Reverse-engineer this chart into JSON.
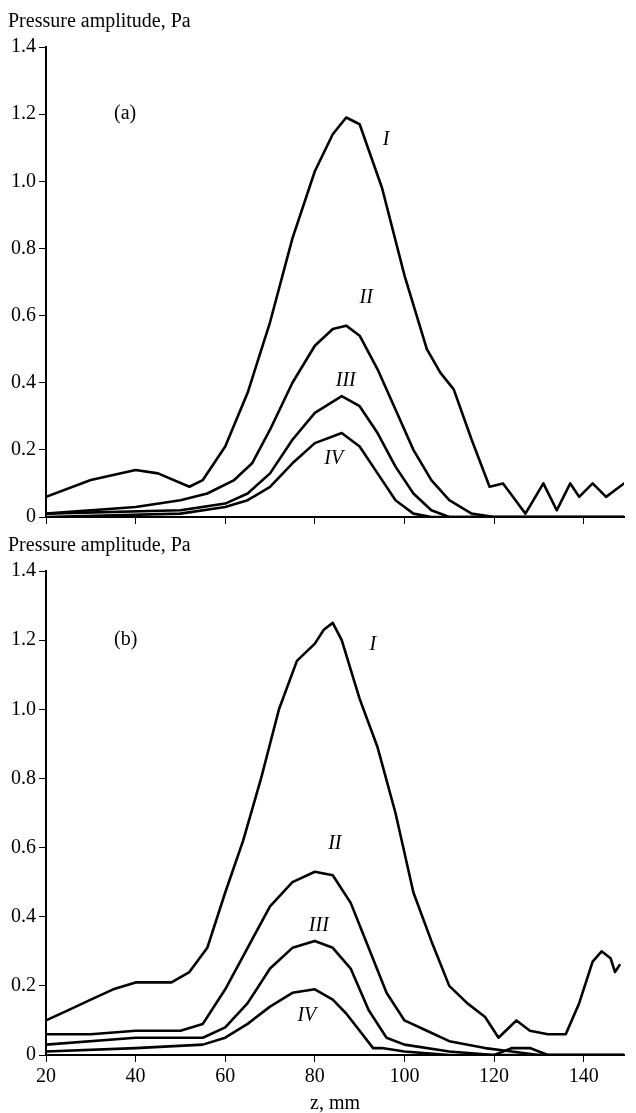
{
  "chart_data": [
    {
      "type": "line",
      "ylabel": "Pressure amplitude, Pa",
      "xlim": [
        20,
        149
      ],
      "ylim": [
        0,
        1.4
      ],
      "xticks": [
        20,
        40,
        60,
        80,
        100,
        120,
        140
      ],
      "yticks": [
        0,
        0.2,
        0.4,
        0.6,
        0.8,
        {
          "value": 1,
          "label": "1.0"
        },
        1.2,
        1.4
      ],
      "tick_labels": "y",
      "grid": false,
      "marker": "none",
      "series": [
        {
          "name": "I",
          "color": "#000000",
          "x": [
            20,
            30,
            40,
            45,
            52,
            55,
            60,
            65,
            70,
            75,
            80,
            84,
            87,
            90,
            95,
            100,
            105,
            108,
            111,
            115,
            119,
            122,
            127,
            131,
            134,
            137,
            139,
            142,
            145,
            149
          ],
          "values": [
            0.06,
            0.11,
            0.14,
            0.13,
            0.09,
            0.11,
            0.21,
            0.37,
            0.58,
            0.83,
            1.03,
            1.14,
            1.19,
            1.17,
            0.98,
            0.72,
            0.5,
            0.43,
            0.38,
            0.23,
            0.09,
            0.1,
            0.01,
            0.1,
            0.02,
            0.1,
            0.06,
            0.1,
            0.06,
            0.1
          ]
        },
        {
          "name": "II",
          "color": "#000000",
          "x": [
            20,
            40,
            50,
            56,
            62,
            66,
            70,
            75,
            80,
            84,
            87,
            90,
            94,
            98,
            102,
            106,
            110,
            115,
            120,
            149
          ],
          "values": [
            0.01,
            0.03,
            0.05,
            0.07,
            0.11,
            0.16,
            0.26,
            0.4,
            0.51,
            0.56,
            0.57,
            0.54,
            0.44,
            0.32,
            0.2,
            0.11,
            0.05,
            0.01,
            0,
            0
          ]
        },
        {
          "name": "III",
          "color": "#000000",
          "x": [
            20,
            50,
            60,
            65,
            70,
            75,
            80,
            86,
            90,
            94,
            98,
            102,
            106,
            110,
            149
          ],
          "values": [
            0.01,
            0.02,
            0.04,
            0.07,
            0.13,
            0.23,
            0.31,
            0.36,
            0.33,
            0.25,
            0.15,
            0.07,
            0.02,
            0,
            0
          ]
        },
        {
          "name": "IV",
          "color": "#000000",
          "x": [
            20,
            50,
            60,
            65,
            70,
            75,
            80,
            86,
            90,
            94,
            98,
            102,
            106,
            149
          ],
          "values": [
            0,
            0.01,
            0.03,
            0.05,
            0.09,
            0.16,
            0.22,
            0.25,
            0.21,
            0.13,
            0.05,
            0.01,
            0,
            0
          ]
        }
      ],
      "annotations": [
        "(a)"
      ]
    },
    {
      "type": "line",
      "ylabel": "Pressure amplitude, Pa",
      "xlabel": "z, mm",
      "xlim": [
        20,
        149
      ],
      "ylim": [
        0,
        1.4
      ],
      "xticks": [
        20,
        40,
        60,
        80,
        100,
        120,
        140
      ],
      "yticks": [
        0,
        0.2,
        0.4,
        0.6,
        0.8,
        {
          "value": 1,
          "label": "1.0"
        },
        1.2,
        1.4
      ],
      "grid": false,
      "marker": "none",
      "series": [
        {
          "name": "I",
          "color": "#000000",
          "x": [
            20,
            25,
            30,
            35,
            40,
            45,
            48,
            52,
            56,
            60,
            64,
            68,
            72,
            76,
            80,
            82,
            84,
            86,
            90,
            94,
            98,
            102,
            106,
            110,
            114,
            118,
            121,
            125,
            128,
            132,
            136,
            139,
            142,
            144,
            146,
            147,
            148
          ],
          "values": [
            0.1,
            0.13,
            0.16,
            0.19,
            0.21,
            0.21,
            0.21,
            0.24,
            0.31,
            0.47,
            0.62,
            0.8,
            1,
            1.14,
            1.19,
            1.23,
            1.25,
            1.2,
            1.03,
            0.89,
            0.7,
            0.47,
            0.33,
            0.2,
            0.15,
            0.11,
            0.05,
            0.1,
            0.07,
            0.06,
            0.06,
            0.15,
            0.27,
            0.3,
            0.28,
            0.24,
            0.26
          ]
        },
        {
          "name": "II",
          "color": "#000000",
          "x": [
            20,
            30,
            40,
            50,
            55,
            60,
            65,
            70,
            75,
            80,
            84,
            88,
            92,
            96,
            100,
            105,
            110,
            118,
            124,
            130,
            149
          ],
          "values": [
            0.06,
            0.06,
            0.07,
            0.07,
            0.09,
            0.19,
            0.31,
            0.43,
            0.5,
            0.53,
            0.52,
            0.44,
            0.31,
            0.18,
            0.1,
            0.07,
            0.04,
            0.02,
            0.01,
            0,
            0
          ]
        },
        {
          "name": "III",
          "color": "#000000",
          "x": [
            20,
            40,
            50,
            55,
            60,
            65,
            70,
            75,
            80,
            84,
            88,
            92,
            96,
            100,
            110,
            120,
            124,
            128,
            132,
            149
          ],
          "values": [
            0.03,
            0.05,
            0.05,
            0.05,
            0.08,
            0.15,
            0.25,
            0.31,
            0.33,
            0.31,
            0.25,
            0.13,
            0.05,
            0.03,
            0.01,
            0,
            0.02,
            0.02,
            0,
            0
          ]
        },
        {
          "name": "IV",
          "color": "#000000",
          "x": [
            20,
            40,
            55,
            60,
            65,
            70,
            75,
            80,
            84,
            87,
            90,
            93,
            95,
            100,
            110,
            149
          ],
          "values": [
            0.01,
            0.02,
            0.03,
            0.05,
            0.09,
            0.14,
            0.18,
            0.19,
            0.16,
            0.12,
            0.07,
            0.02,
            0.02,
            0.01,
            0,
            0
          ]
        }
      ],
      "annotations": [
        "(b)"
      ]
    }
  ]
}
